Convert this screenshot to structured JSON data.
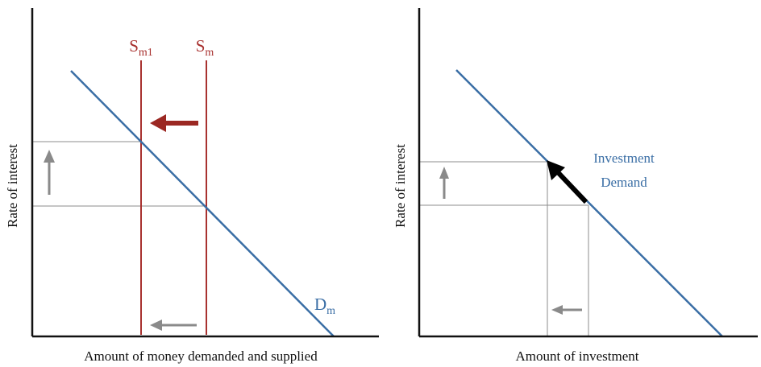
{
  "colors": {
    "axis": "#111111",
    "guide": "#8c8c8c",
    "demand": "#3a6ea5",
    "supply": "#a8312f",
    "shift_arrow_money": "#9b2823",
    "shift_arrow_investment": "#000000",
    "small_arrow": "#8a8a8a"
  },
  "left_panel": {
    "y_axis_label": "Rate of interest",
    "x_axis_label": "Amount of money demanded and supplied",
    "supply_new": {
      "main": "S",
      "sub": "m1"
    },
    "supply_old": {
      "main": "S",
      "sub": "m"
    },
    "demand": {
      "main": "D",
      "sub": "m"
    }
  },
  "right_panel": {
    "y_axis_label": "Rate of interest",
    "x_axis_label": "Amount of investment",
    "curve_label_line1": "Investment",
    "curve_label_line2": "Demand"
  }
}
